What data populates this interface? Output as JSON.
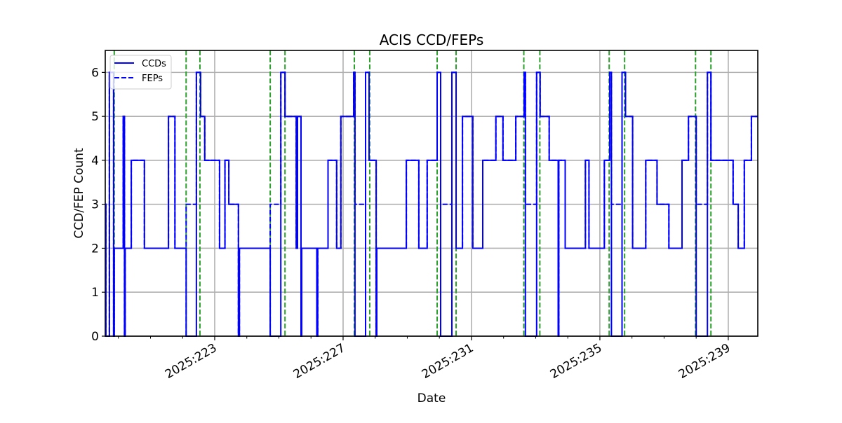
{
  "chart_data": {
    "type": "line",
    "subtype": "step",
    "title": "ACIS CCD/FEPs",
    "xlabel": "Date",
    "ylabel": "CCD/FEP Count",
    "xlim": [
      219.59,
      239.92
    ],
    "ylim": [
      0,
      6.5
    ],
    "x_unit": "day-of-year 2025",
    "x_ticks": [
      {
        "value": 223,
        "label": "2025:223"
      },
      {
        "value": 227,
        "label": "2025:227"
      },
      {
        "value": 231,
        "label": "2025:231"
      },
      {
        "value": 235,
        "label": "2025:235"
      },
      {
        "value": 239,
        "label": "2025:239"
      }
    ],
    "x_minor_tick_step": 1,
    "y_ticks": [
      0,
      1,
      2,
      3,
      4,
      5,
      6
    ],
    "grid": true,
    "legend": {
      "position": "upper left",
      "entries": [
        {
          "label": "CCDs",
          "style": "solid",
          "color": "#0000ff"
        },
        {
          "label": "FEPs",
          "style": "dashed",
          "color": "#0000ff"
        }
      ]
    },
    "series": [
      {
        "name": "CCDs",
        "color": "#0000ff",
        "style": "solid",
        "steps": [
          [
            219.59,
            3
          ],
          [
            219.61,
            0
          ],
          [
            219.72,
            6
          ],
          [
            219.85,
            0
          ],
          [
            219.87,
            2
          ],
          [
            220.15,
            5
          ],
          [
            220.19,
            0
          ],
          [
            220.21,
            2
          ],
          [
            220.4,
            4
          ],
          [
            220.81,
            2
          ],
          [
            221.56,
            5
          ],
          [
            221.76,
            2
          ],
          [
            222.11,
            0
          ],
          [
            222.43,
            6
          ],
          [
            222.56,
            5
          ],
          [
            222.69,
            4
          ],
          [
            223.15,
            2
          ],
          [
            223.32,
            4
          ],
          [
            223.44,
            3
          ],
          [
            223.74,
            0
          ],
          [
            223.77,
            2
          ],
          [
            224.73,
            0
          ],
          [
            225.06,
            6
          ],
          [
            225.19,
            5
          ],
          [
            225.54,
            2
          ],
          [
            225.58,
            5
          ],
          [
            225.69,
            0
          ],
          [
            225.71,
            2
          ],
          [
            226.18,
            0
          ],
          [
            226.21,
            2
          ],
          [
            226.53,
            4
          ],
          [
            226.8,
            2
          ],
          [
            226.93,
            5
          ],
          [
            227.33,
            6
          ],
          [
            227.37,
            0
          ],
          [
            227.7,
            6
          ],
          [
            227.81,
            4
          ],
          [
            228.03,
            0
          ],
          [
            228.05,
            2
          ],
          [
            228.97,
            4
          ],
          [
            229.36,
            2
          ],
          [
            229.62,
            4
          ],
          [
            229.93,
            6
          ],
          [
            230.04,
            0
          ],
          [
            230.39,
            6
          ],
          [
            230.52,
            2
          ],
          [
            230.72,
            5
          ],
          [
            231.04,
            2
          ],
          [
            231.35,
            4
          ],
          [
            231.76,
            5
          ],
          [
            231.98,
            4
          ],
          [
            232.38,
            5
          ],
          [
            232.64,
            6
          ],
          [
            232.68,
            0
          ],
          [
            233.03,
            6
          ],
          [
            233.14,
            5
          ],
          [
            233.42,
            4
          ],
          [
            233.7,
            0
          ],
          [
            233.72,
            4
          ],
          [
            233.92,
            2
          ],
          [
            234.55,
            4
          ],
          [
            234.66,
            2
          ],
          [
            235.14,
            4
          ],
          [
            235.31,
            6
          ],
          [
            235.36,
            0
          ],
          [
            235.69,
            6
          ],
          [
            235.8,
            5
          ],
          [
            236.02,
            2
          ],
          [
            236.43,
            4
          ],
          [
            236.78,
            3
          ],
          [
            237.15,
            2
          ],
          [
            237.56,
            4
          ],
          [
            237.76,
            5
          ],
          [
            238.0,
            0
          ],
          [
            238.35,
            6
          ],
          [
            238.46,
            4
          ],
          [
            239.15,
            3
          ],
          [
            239.31,
            2
          ],
          [
            239.5,
            4
          ],
          [
            239.72,
            5
          ],
          [
            239.92,
            5
          ]
        ]
      },
      {
        "name": "FEPs",
        "color": "#0000ff",
        "style": "dashed",
        "steps": [
          [
            219.59,
            3
          ],
          [
            219.61,
            0
          ],
          [
            219.72,
            6
          ],
          [
            219.85,
            0
          ],
          [
            219.87,
            2
          ],
          [
            220.15,
            5
          ],
          [
            220.19,
            0
          ],
          [
            220.21,
            2
          ],
          [
            220.4,
            4
          ],
          [
            220.81,
            2
          ],
          [
            221.56,
            5
          ],
          [
            221.76,
            2
          ],
          [
            222.11,
            3
          ],
          [
            222.43,
            6
          ],
          [
            222.56,
            5
          ],
          [
            222.69,
            4
          ],
          [
            223.15,
            2
          ],
          [
            223.32,
            4
          ],
          [
            223.44,
            3
          ],
          [
            223.74,
            0
          ],
          [
            223.77,
            2
          ],
          [
            224.73,
            3
          ],
          [
            225.06,
            6
          ],
          [
            225.19,
            5
          ],
          [
            225.54,
            2
          ],
          [
            225.58,
            5
          ],
          [
            225.69,
            0
          ],
          [
            225.71,
            2
          ],
          [
            226.18,
            0
          ],
          [
            226.21,
            2
          ],
          [
            226.53,
            4
          ],
          [
            226.8,
            2
          ],
          [
            226.93,
            5
          ],
          [
            227.33,
            6
          ],
          [
            227.37,
            3
          ],
          [
            227.7,
            6
          ],
          [
            227.81,
            4
          ],
          [
            228.03,
            0
          ],
          [
            228.05,
            2
          ],
          [
            228.97,
            4
          ],
          [
            229.36,
            2
          ],
          [
            229.62,
            4
          ],
          [
            229.93,
            6
          ],
          [
            230.04,
            3
          ],
          [
            230.39,
            6
          ],
          [
            230.52,
            2
          ],
          [
            230.72,
            5
          ],
          [
            231.04,
            2
          ],
          [
            231.35,
            4
          ],
          [
            231.76,
            5
          ],
          [
            231.98,
            4
          ],
          [
            232.38,
            5
          ],
          [
            232.64,
            6
          ],
          [
            232.68,
            3
          ],
          [
            233.03,
            6
          ],
          [
            233.14,
            5
          ],
          [
            233.42,
            4
          ],
          [
            233.7,
            0
          ],
          [
            233.72,
            4
          ],
          [
            233.92,
            2
          ],
          [
            234.55,
            4
          ],
          [
            234.66,
            2
          ],
          [
            235.14,
            4
          ],
          [
            235.31,
            6
          ],
          [
            235.36,
            3
          ],
          [
            235.69,
            6
          ],
          [
            235.8,
            5
          ],
          [
            236.02,
            2
          ],
          [
            236.43,
            4
          ],
          [
            236.78,
            3
          ],
          [
            237.15,
            2
          ],
          [
            237.56,
            4
          ],
          [
            237.76,
            5
          ],
          [
            238.0,
            3
          ],
          [
            238.35,
            6
          ],
          [
            238.46,
            4
          ],
          [
            239.15,
            3
          ],
          [
            239.31,
            2
          ],
          [
            239.5,
            4
          ],
          [
            239.72,
            5
          ],
          [
            239.92,
            5
          ]
        ]
      }
    ],
    "vertical_markers": {
      "color": "#2ca02c",
      "style": "dashed",
      "x": [
        219.87,
        222.11,
        222.54,
        224.73,
        225.19,
        227.35,
        227.83,
        229.93,
        230.52,
        232.63,
        233.13,
        235.29,
        235.77,
        237.98,
        238.46
      ]
    }
  }
}
